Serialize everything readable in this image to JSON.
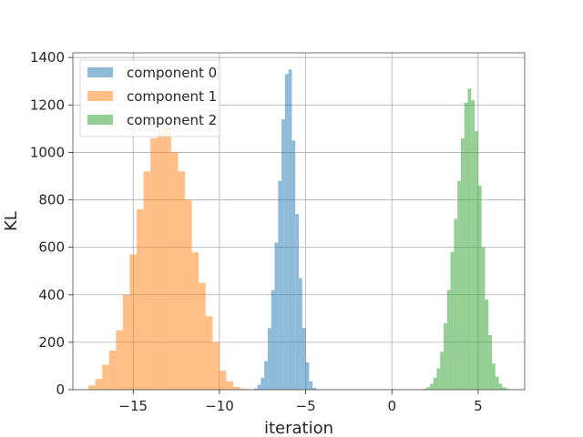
{
  "chart_data": {
    "type": "bar",
    "title": "",
    "xlabel": "iteration",
    "ylabel": "KL",
    "xlim": [
      -18.5,
      7.7
    ],
    "ylim": [
      0,
      1420
    ],
    "xticks": [
      -15,
      -10,
      -5,
      0,
      5
    ],
    "xtick_labels": [
      "−15",
      "−10",
      "−5",
      "0",
      "5"
    ],
    "yticks": [
      0,
      200,
      400,
      600,
      800,
      1000,
      1200,
      1400
    ],
    "ytick_labels": [
      "0",
      "200",
      "400",
      "600",
      "800",
      "1000",
      "1200",
      "1400"
    ],
    "grid": true,
    "legend_position": "top-left",
    "series": [
      {
        "name": "component 0",
        "color": "#1f77b4",
        "opacity": 0.5,
        "bin_edges": [
          -8.0,
          -7.8,
          -7.6,
          -7.4,
          -7.2,
          -7.0,
          -6.8,
          -6.6,
          -6.4,
          -6.2,
          -6.0,
          -5.8,
          -5.6,
          -5.4,
          -5.2,
          -5.0,
          -4.8,
          -4.6,
          -4.4,
          -4.2
        ],
        "counts": [
          5,
          20,
          50,
          120,
          260,
          420,
          620,
          880,
          1140,
          1330,
          1350,
          1050,
          740,
          470,
          260,
          115,
          35,
          8,
          2
        ]
      },
      {
        "name": "component 1",
        "color": "#ff7f0e",
        "opacity": 0.5,
        "bin_edges": [
          -17.6,
          -17.2,
          -16.8,
          -16.4,
          -16.0,
          -15.6,
          -15.2,
          -14.8,
          -14.4,
          -14.0,
          -13.6,
          -13.2,
          -12.8,
          -12.4,
          -12.0,
          -11.6,
          -11.2,
          -10.8,
          -10.4,
          -10.0,
          -9.6,
          -9.2,
          -8.8,
          -8.4
        ],
        "counts": [
          18,
          45,
          105,
          165,
          250,
          400,
          570,
          760,
          920,
          1060,
          1100,
          1120,
          1000,
          920,
          800,
          580,
          450,
          310,
          200,
          80,
          35,
          12,
          4
        ]
      },
      {
        "name": "component 2",
        "color": "#2ca02c",
        "opacity": 0.5,
        "bin_edges": [
          1.8,
          2.0,
          2.2,
          2.4,
          2.6,
          2.8,
          3.0,
          3.2,
          3.4,
          3.6,
          3.8,
          4.0,
          4.2,
          4.4,
          4.6,
          4.8,
          5.0,
          5.2,
          5.4,
          5.6,
          5.8,
          6.0,
          6.2,
          6.4,
          6.6,
          6.8
        ],
        "counts": [
          4,
          10,
          25,
          50,
          90,
          160,
          280,
          420,
          580,
          720,
          880,
          1060,
          1210,
          1270,
          1220,
          1090,
          860,
          600,
          380,
          230,
          110,
          55,
          25,
          10,
          4
        ]
      }
    ]
  }
}
